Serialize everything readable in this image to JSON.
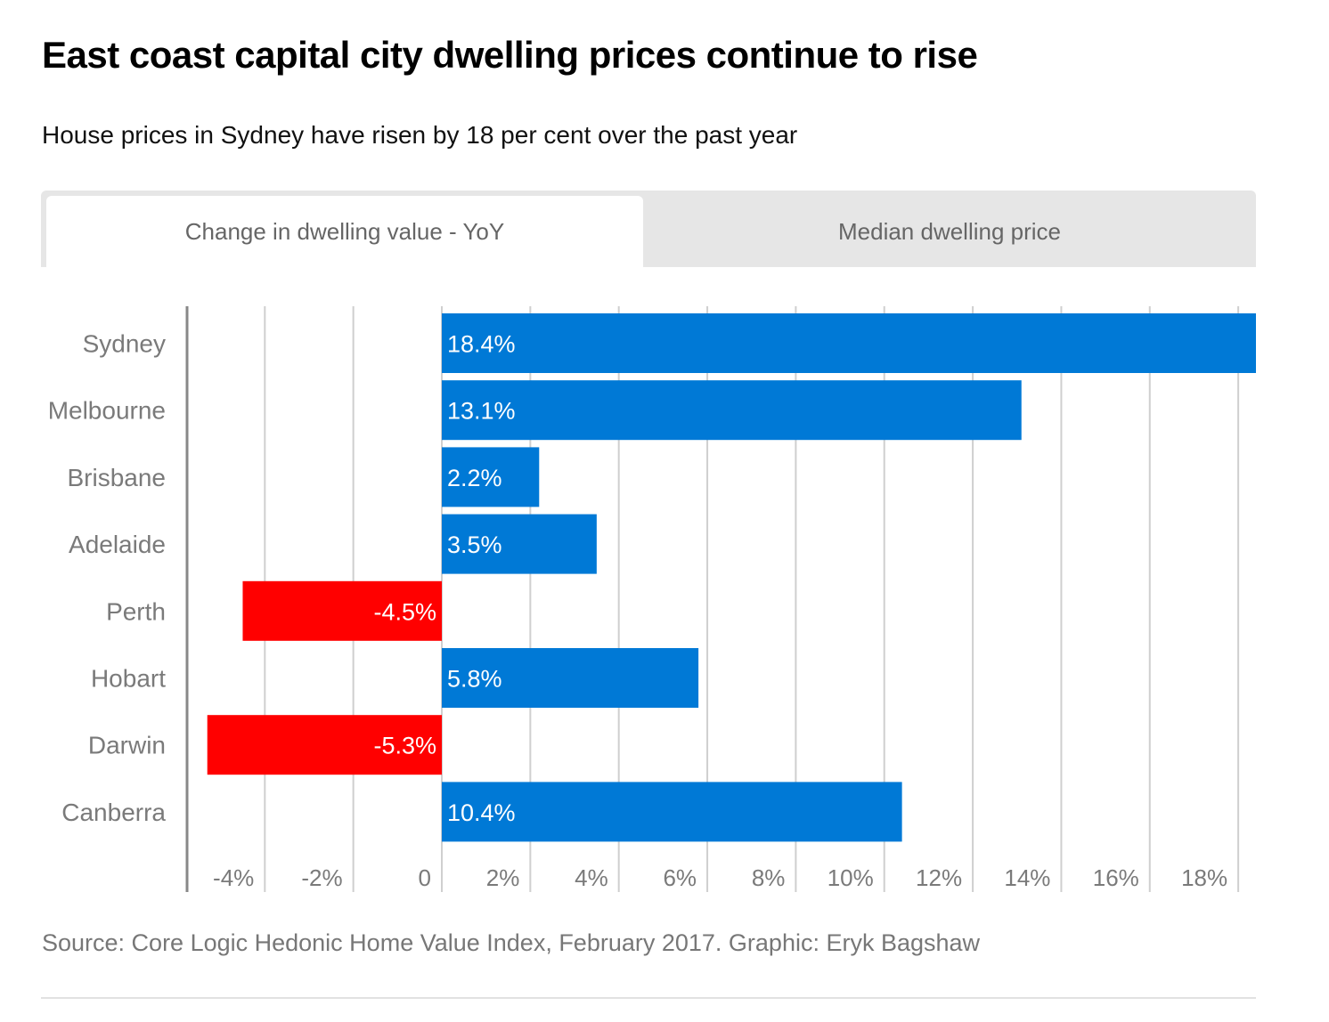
{
  "title": "East coast capital city dwelling prices continue to rise",
  "subtitle": "House prices in Sydney have risen by 18 per cent over the past year",
  "tabs": [
    {
      "label": "Change in dwelling value - YoY",
      "active": true
    },
    {
      "label": "Median dwelling price",
      "active": false
    }
  ],
  "source": "Source: Core Logic Hedonic Home Value Index, February 2017. Graphic: Eryk Bagshaw",
  "colors": {
    "positive": "#0079d6",
    "negative": "#ff0000",
    "grid": "#cfcfcf",
    "axis": "#888888",
    "label": "#7a7a7a"
  },
  "chart_data": {
    "type": "bar",
    "orientation": "horizontal",
    "categories": [
      "Sydney",
      "Melbourne",
      "Brisbane",
      "Adelaide",
      "Perth",
      "Hobart",
      "Darwin",
      "Canberra"
    ],
    "values": [
      18.4,
      13.1,
      2.2,
      3.5,
      -4.5,
      5.8,
      -5.3,
      10.4
    ],
    "data_labels": [
      "18.4%",
      "13.1%",
      "2.2%",
      "3.5%",
      "-4.5%",
      "5.8%",
      "-5.3%",
      "10.4%"
    ],
    "xticks": [
      -4,
      -2,
      0,
      2,
      4,
      6,
      8,
      10,
      12,
      14,
      16,
      18
    ],
    "xtick_labels": [
      "-4%",
      "-2%",
      "0",
      "2%",
      "4%",
      "6%",
      "8%",
      "10%",
      "12%",
      "14%",
      "16%",
      "18%"
    ],
    "xlim": [
      -6,
      18.4
    ],
    "grid": true
  }
}
